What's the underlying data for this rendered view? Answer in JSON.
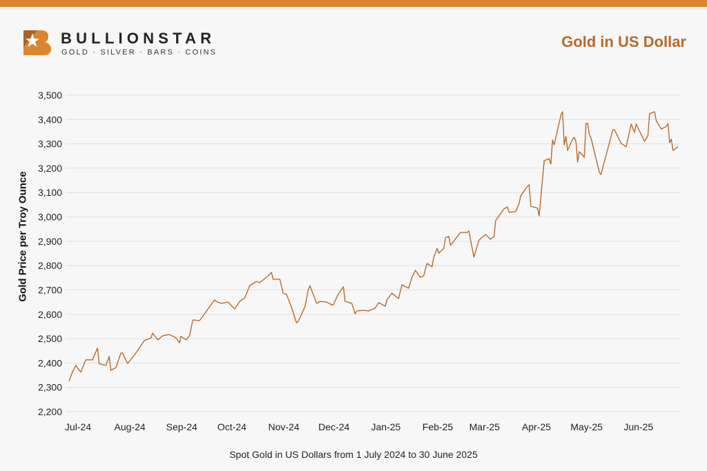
{
  "brand": {
    "name": "BULLIONSTAR",
    "tagline": "GOLD · SILVER · BARS · COINS"
  },
  "colors": {
    "accent": "#d9862f",
    "line": "#b8692a",
    "title": "#b8692a",
    "grid": "#dedede"
  },
  "chart_data": {
    "type": "line",
    "title": "Gold in US Dollar",
    "ylabel": "Gold Price per Troy Ounce",
    "xlabel": "Spot Gold in US Dollars from 1 July 2024 to 30 June 2025",
    "ylim": [
      2200,
      3500
    ],
    "yticks": [
      2200,
      2300,
      2400,
      2500,
      2600,
      2700,
      2800,
      2900,
      3000,
      3100,
      3200,
      3300,
      3400,
      3500
    ],
    "ytick_labels": [
      "2,200",
      "2,300",
      "2,400",
      "2,500",
      "2,600",
      "2,700",
      "2,800",
      "2,900",
      "3,000",
      "3,100",
      "3,200",
      "3,300",
      "3,400",
      "3,500"
    ],
    "xticks": [
      "2024-07-01",
      "2024-08-01",
      "2024-09-01",
      "2024-10-01",
      "2024-11-01",
      "2024-12-01",
      "2025-01-01",
      "2025-02-01",
      "2025-03-01",
      "2025-04-01",
      "2025-05-01",
      "2025-06-01"
    ],
    "xtick_labels": [
      "Jul-24",
      "Aug-24",
      "Sep-24",
      "Oct-24",
      "Nov-24",
      "Dec-24",
      "Jan-25",
      "Feb-25",
      "Mar-25",
      "Apr-25",
      "May-25",
      "Jun-25"
    ],
    "xlim": [
      "2024-07-01",
      "2025-06-30"
    ],
    "grid": "horizontal",
    "series": [
      {
        "points": [
          [
            "2024-07-01",
            2325
          ],
          [
            "2024-07-03",
            2362
          ],
          [
            "2024-07-05",
            2390
          ],
          [
            "2024-07-08",
            2362
          ],
          [
            "2024-07-11",
            2413
          ],
          [
            "2024-07-15",
            2413
          ],
          [
            "2024-07-18",
            2461
          ],
          [
            "2024-07-19",
            2397
          ],
          [
            "2024-07-23",
            2390
          ],
          [
            "2024-07-25",
            2427
          ],
          [
            "2024-07-26",
            2370
          ],
          [
            "2024-07-29",
            2381
          ],
          [
            "2024-08-01",
            2441
          ],
          [
            "2024-08-02",
            2441
          ],
          [
            "2024-08-05",
            2398
          ],
          [
            "2024-08-09",
            2432
          ],
          [
            "2024-08-12",
            2461
          ],
          [
            "2024-08-15",
            2492
          ],
          [
            "2024-08-19",
            2503
          ],
          [
            "2024-08-20",
            2523
          ],
          [
            "2024-08-23",
            2495
          ],
          [
            "2024-08-26",
            2512
          ],
          [
            "2024-08-30",
            2517
          ],
          [
            "2024-09-03",
            2503
          ],
          [
            "2024-09-05",
            2483
          ],
          [
            "2024-09-06",
            2509
          ],
          [
            "2024-09-09",
            2495
          ],
          [
            "2024-09-11",
            2512
          ],
          [
            "2024-09-13",
            2577
          ],
          [
            "2024-09-17",
            2574
          ],
          [
            "2024-09-20",
            2602
          ],
          [
            "2024-09-23",
            2631
          ],
          [
            "2024-09-26",
            2659
          ],
          [
            "2024-09-27",
            2653
          ],
          [
            "2024-09-30",
            2645
          ],
          [
            "2024-10-04",
            2650
          ],
          [
            "2024-10-08",
            2622
          ],
          [
            "2024-10-11",
            2653
          ],
          [
            "2024-10-14",
            2667
          ],
          [
            "2024-10-17",
            2718
          ],
          [
            "2024-10-21",
            2735
          ],
          [
            "2024-10-23",
            2730
          ],
          [
            "2024-10-28",
            2758
          ],
          [
            "2024-10-30",
            2772
          ],
          [
            "2024-10-31",
            2744
          ],
          [
            "2024-11-04",
            2744
          ],
          [
            "2024-11-06",
            2687
          ],
          [
            "2024-11-08",
            2682
          ],
          [
            "2024-11-11",
            2628
          ],
          [
            "2024-11-14",
            2565
          ],
          [
            "2024-11-15",
            2571
          ],
          [
            "2024-11-19",
            2631
          ],
          [
            "2024-11-21",
            2701
          ],
          [
            "2024-11-22",
            2718
          ],
          [
            "2024-11-26",
            2645
          ],
          [
            "2024-11-28",
            2653
          ],
          [
            "2024-12-02",
            2650
          ],
          [
            "2024-12-05",
            2639
          ],
          [
            "2024-12-06",
            2639
          ],
          [
            "2024-12-09",
            2684
          ],
          [
            "2024-12-12",
            2713
          ],
          [
            "2024-12-13",
            2653
          ],
          [
            "2024-12-17",
            2645
          ],
          [
            "2024-12-19",
            2602
          ],
          [
            "2024-12-20",
            2614
          ],
          [
            "2024-12-24",
            2616
          ],
          [
            "2024-12-27",
            2614
          ],
          [
            "2024-12-31",
            2625
          ],
          [
            "2025-01-02",
            2648
          ],
          [
            "2025-01-06",
            2633
          ],
          [
            "2025-01-07",
            2659
          ],
          [
            "2025-01-10",
            2687
          ],
          [
            "2025-01-14",
            2665
          ],
          [
            "2025-01-16",
            2721
          ],
          [
            "2025-01-20",
            2707
          ],
          [
            "2025-01-22",
            2752
          ],
          [
            "2025-01-24",
            2781
          ],
          [
            "2025-01-27",
            2752
          ],
          [
            "2025-01-29",
            2758
          ],
          [
            "2025-01-31",
            2809
          ],
          [
            "2025-02-03",
            2795
          ],
          [
            "2025-02-04",
            2834
          ],
          [
            "2025-02-06",
            2871
          ],
          [
            "2025-02-07",
            2851
          ],
          [
            "2025-02-10",
            2871
          ],
          [
            "2025-02-11",
            2914
          ],
          [
            "2025-02-13",
            2920
          ],
          [
            "2025-02-14",
            2883
          ],
          [
            "2025-02-20",
            2936
          ],
          [
            "2025-02-24",
            2936
          ],
          [
            "2025-02-25",
            2942
          ],
          [
            "2025-02-28",
            2834
          ],
          [
            "2025-03-03",
            2905
          ],
          [
            "2025-03-07",
            2928
          ],
          [
            "2025-03-10",
            2908
          ],
          [
            "2025-03-12",
            2920
          ],
          [
            "2025-03-13",
            2985
          ],
          [
            "2025-03-18",
            3033
          ],
          [
            "2025-03-20",
            3041
          ],
          [
            "2025-03-21",
            3019
          ],
          [
            "2025-03-25",
            3022
          ],
          [
            "2025-03-27",
            3055
          ],
          [
            "2025-03-28",
            3087
          ],
          [
            "2025-04-01",
            3126
          ],
          [
            "2025-04-02",
            3132
          ],
          [
            "2025-04-03",
            3044
          ],
          [
            "2025-04-07",
            3036
          ],
          [
            "2025-04-08",
            3004
          ],
          [
            "2025-04-11",
            3231
          ],
          [
            "2025-04-14",
            3239
          ],
          [
            "2025-04-15",
            3217
          ],
          [
            "2025-04-16",
            3316
          ],
          [
            "2025-04-17",
            3296
          ],
          [
            "2025-04-18",
            3327
          ],
          [
            "2025-04-21",
            3418
          ],
          [
            "2025-04-22",
            3432
          ],
          [
            "2025-04-23",
            3296
          ],
          [
            "2025-04-24",
            3330
          ],
          [
            "2025-04-25",
            3273
          ],
          [
            "2025-04-28",
            3319
          ],
          [
            "2025-04-29",
            3327
          ],
          [
            "2025-04-30",
            3310
          ],
          [
            "2025-05-01",
            3225
          ],
          [
            "2025-05-02",
            3268
          ],
          [
            "2025-05-05",
            3245
          ],
          [
            "2025-05-06",
            3384
          ],
          [
            "2025-05-07",
            3384
          ],
          [
            "2025-05-08",
            3338
          ],
          [
            "2025-05-09",
            3324
          ],
          [
            "2025-05-12",
            3239
          ],
          [
            "2025-05-14",
            3183
          ],
          [
            "2025-05-15",
            3174
          ],
          [
            "2025-05-16",
            3203
          ],
          [
            "2025-05-20",
            3305
          ],
          [
            "2025-05-22",
            3358
          ],
          [
            "2025-05-23",
            3358
          ],
          [
            "2025-05-27",
            3302
          ],
          [
            "2025-05-29",
            3293
          ],
          [
            "2025-05-30",
            3288
          ],
          [
            "2025-06-02",
            3381
          ],
          [
            "2025-06-04",
            3347
          ],
          [
            "2025-06-05",
            3381
          ],
          [
            "2025-06-06",
            3367
          ],
          [
            "2025-06-09",
            3324
          ],
          [
            "2025-06-10",
            3310
          ],
          [
            "2025-06-12",
            3333
          ],
          [
            "2025-06-13",
            3424
          ],
          [
            "2025-06-16",
            3432
          ],
          [
            "2025-06-17",
            3395
          ],
          [
            "2025-06-20",
            3361
          ],
          [
            "2025-06-23",
            3372
          ],
          [
            "2025-06-24",
            3384
          ],
          [
            "2025-06-25",
            3305
          ],
          [
            "2025-06-26",
            3319
          ],
          [
            "2025-06-27",
            3273
          ],
          [
            "2025-06-30",
            3288
          ]
        ]
      }
    ]
  }
}
